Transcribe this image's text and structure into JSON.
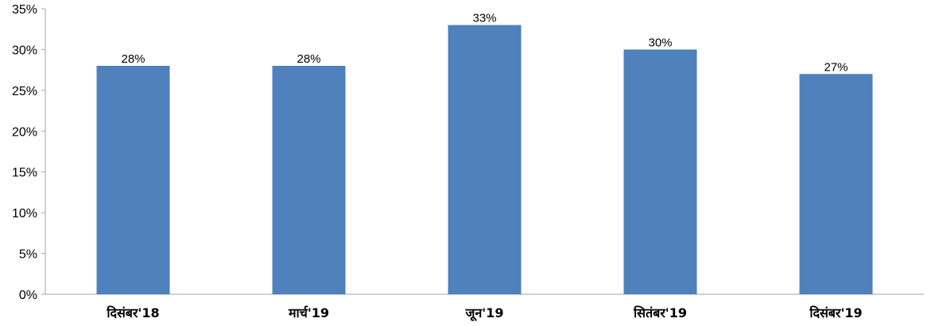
{
  "chart_data": {
    "type": "bar",
    "categories": [
      "दिसंबर'18",
      "मार्च'19",
      "जून'19",
      "सितंबर'19",
      "दिसंबर'19"
    ],
    "values": [
      28,
      28,
      33,
      30,
      27
    ],
    "data_labels": [
      "28%",
      "28%",
      "33%",
      "30%",
      "27%"
    ],
    "yticks": [
      "0%",
      "5%",
      "10%",
      "15%",
      "20%",
      "25%",
      "30%",
      "35%"
    ],
    "ylim": [
      0,
      35
    ],
    "title": "",
    "xlabel": "",
    "ylabel": "",
    "grid": false,
    "legend": "none",
    "bar_color": "#4F81BD",
    "axis_color": "#A6A6A6"
  }
}
